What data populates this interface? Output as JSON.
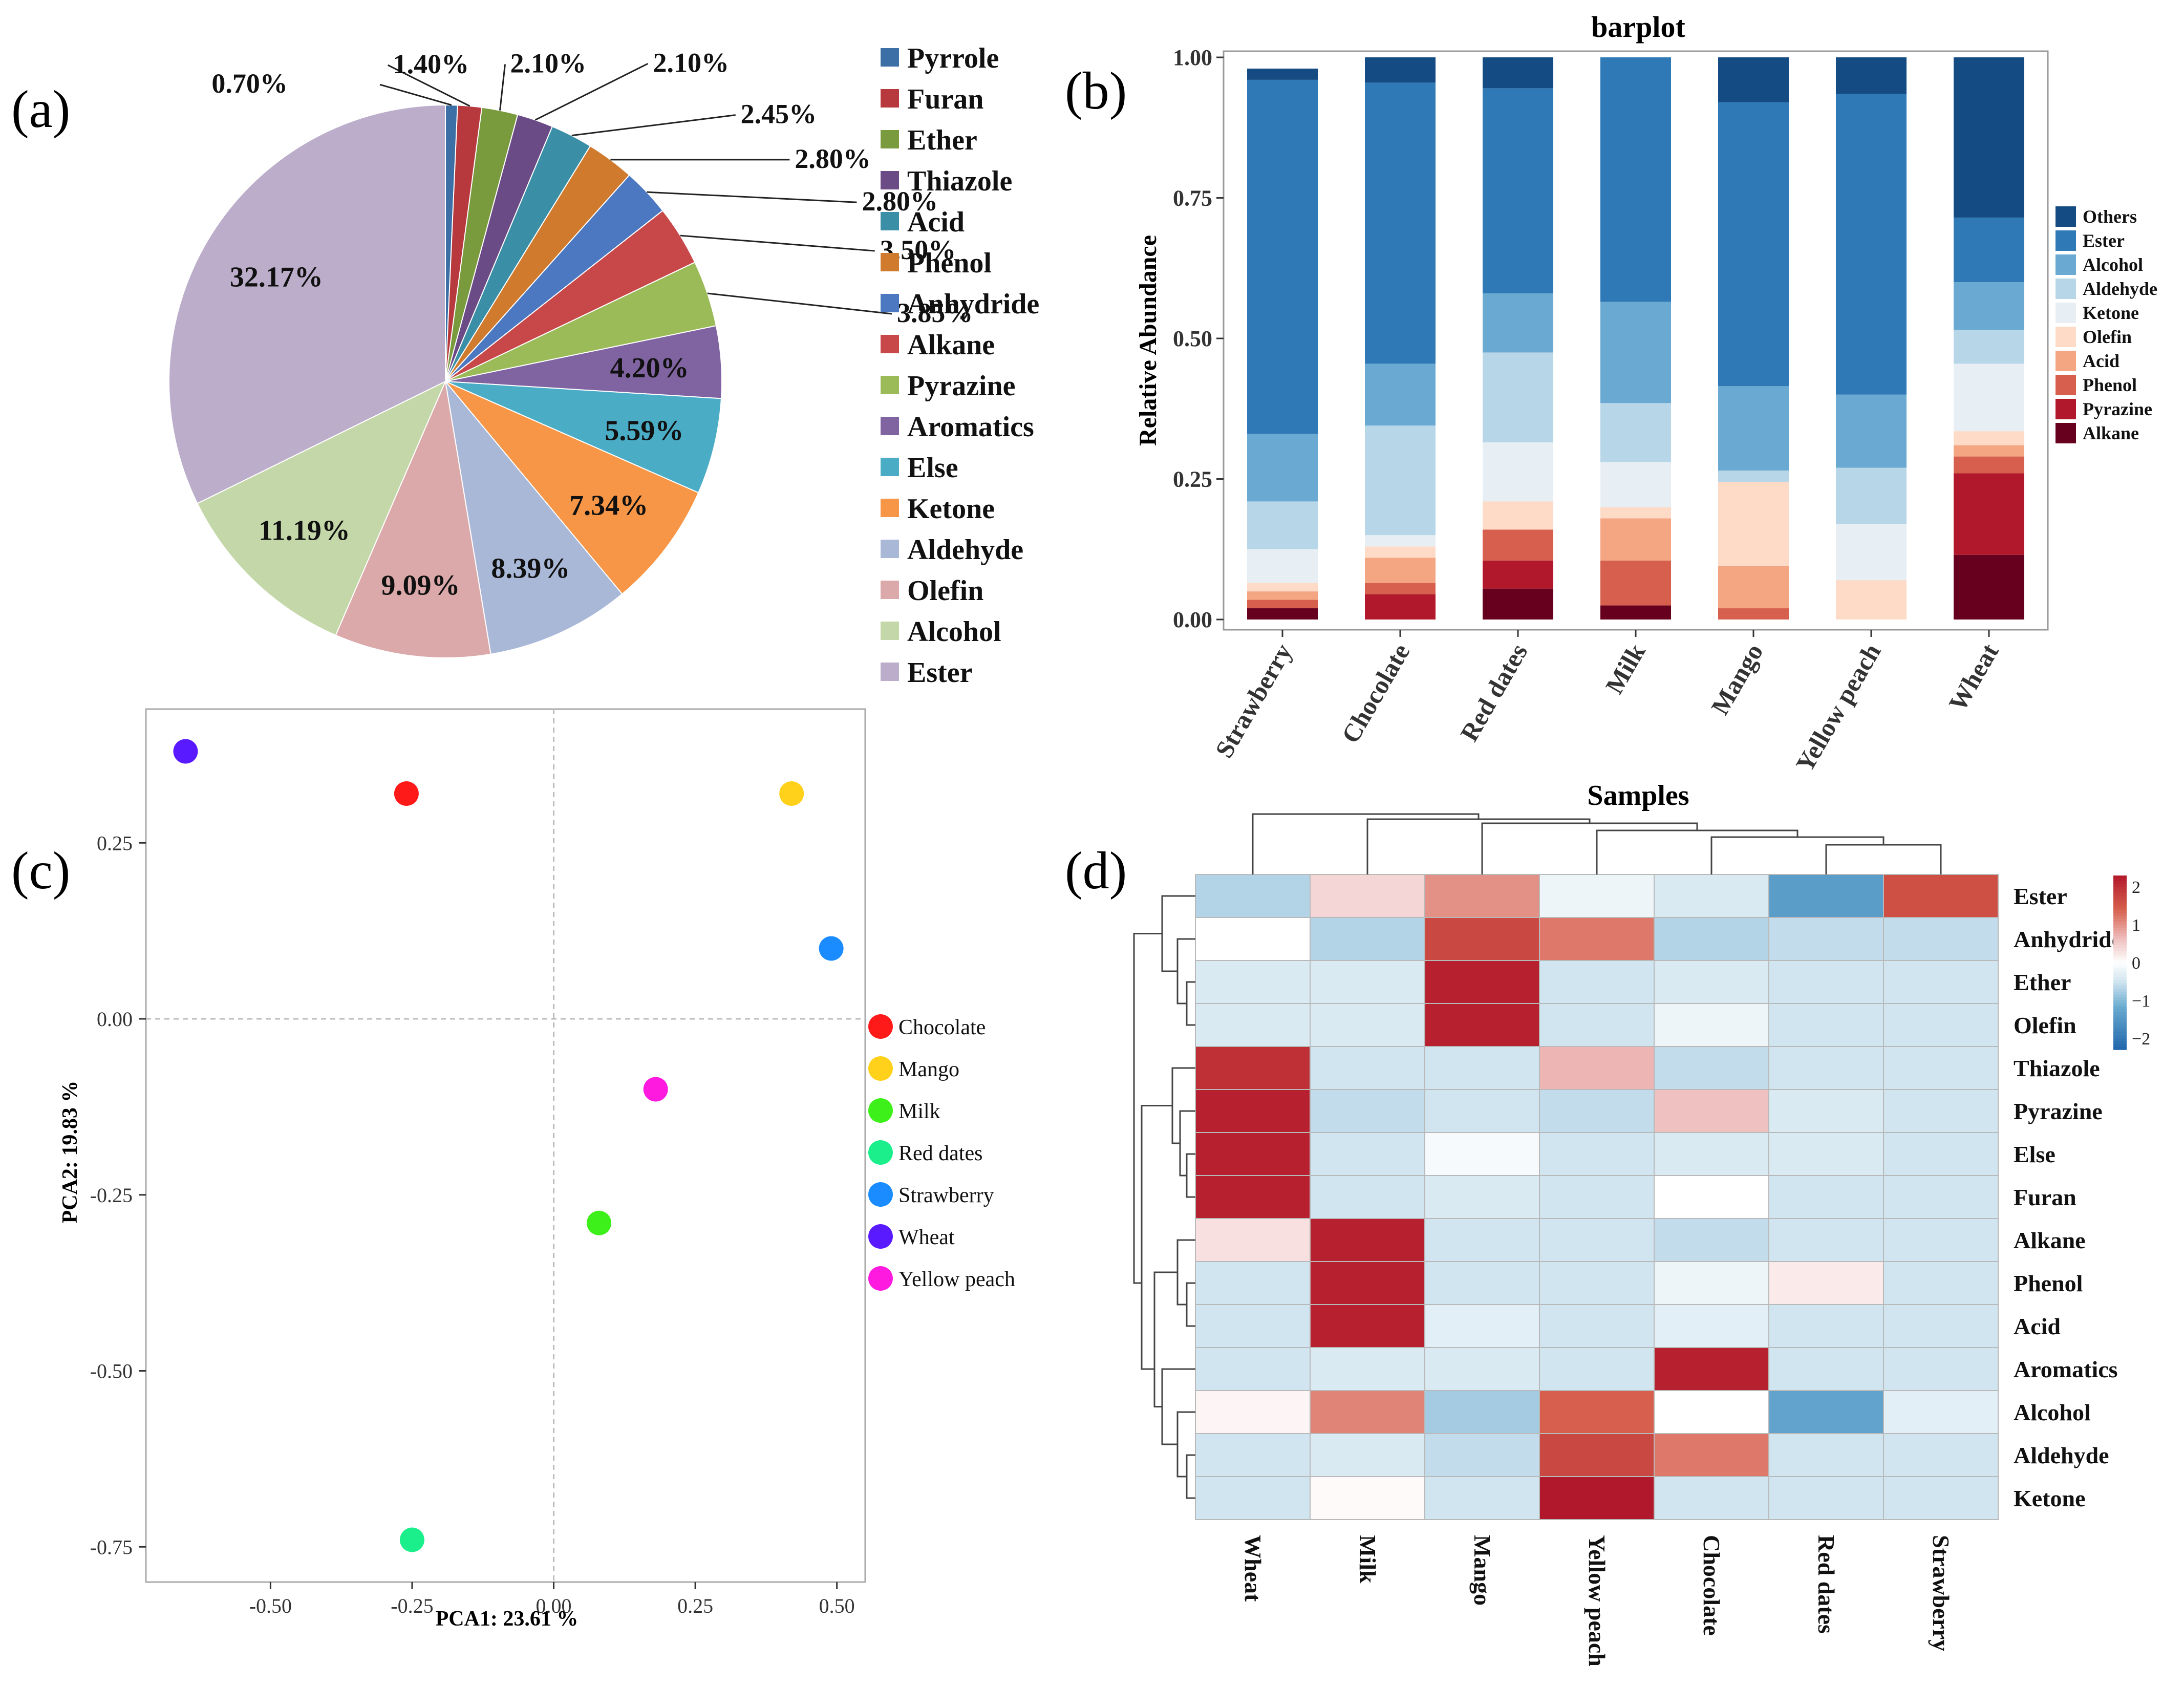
{
  "panel_labels": {
    "a": "(a)",
    "b": "(b)",
    "c": "(c)",
    "d": "(d)"
  },
  "chart_data": [
    {
      "id": "a",
      "type": "pie",
      "title": "",
      "slices": [
        {
          "name": "Pyrrole",
          "value": 0.7,
          "label": "0.70%",
          "color": "#3c6fa6"
        },
        {
          "name": "Furan",
          "value": 1.4,
          "label": "1.40%",
          "color": "#b7393d"
        },
        {
          "name": "Ether",
          "value": 2.1,
          "label": "2.10%",
          "color": "#7a9a3e"
        },
        {
          "name": "Thiazole",
          "value": 2.1,
          "label": "2.10%",
          "color": "#6b4b86"
        },
        {
          "name": "Acid",
          "value": 2.45,
          "label": "2.45%",
          "color": "#3a8ea6"
        },
        {
          "name": "Phenol",
          "value": 2.8,
          "label": "2.80%",
          "color": "#d07a2e"
        },
        {
          "name": "Anhydride",
          "value": 2.8,
          "label": "2.80%",
          "color": "#4b78c0"
        },
        {
          "name": "Alkane",
          "value": 3.5,
          "label": "3.50%",
          "color": "#c8484a"
        },
        {
          "name": "Pyrazine",
          "value": 3.85,
          "label": "3.85%",
          "color": "#9bbb59"
        },
        {
          "name": "Aromatics",
          "value": 4.2,
          "label": "4.20%",
          "color": "#8064a2"
        },
        {
          "name": "Else",
          "value": 5.59,
          "label": "5.59%",
          "color": "#4bacc6"
        },
        {
          "name": "Ketone",
          "value": 7.34,
          "label": "7.34%",
          "color": "#f79646"
        },
        {
          "name": "Aldehyde",
          "value": 8.39,
          "label": "8.39%",
          "color": "#aab8d8"
        },
        {
          "name": "Olefin",
          "value": 9.09,
          "label": "9.09%",
          "color": "#dba9a9"
        },
        {
          "name": "Alcohol",
          "value": 11.19,
          "label": "11.19%",
          "color": "#c4d7a8"
        },
        {
          "name": "Ester",
          "value": 32.17,
          "label": "32.17%",
          "color": "#bcaecb"
        }
      ]
    },
    {
      "id": "b",
      "type": "bar",
      "stacked": true,
      "title": "barplot",
      "xlabel": "",
      "ylabel": "Relative Abundance",
      "ylim": [
        0,
        1
      ],
      "yticks": [
        "0.00",
        "0.25",
        "0.50",
        "0.75",
        "1.00"
      ],
      "categories": [
        "Strawberry",
        "Chocolate",
        "Red dates",
        "Milk",
        "Mango",
        "Yellow peach",
        "Wheat"
      ],
      "series": [
        {
          "name": "Alkane",
          "color": "#67001f",
          "values": [
            0.02,
            0.0,
            0.055,
            0.025,
            0.0,
            0.0,
            0.115
          ]
        },
        {
          "name": "Pyrazine",
          "color": "#b2182b",
          "values": [
            0.0,
            0.045,
            0.05,
            0.0,
            0.0,
            0.0,
            0.145
          ]
        },
        {
          "name": "Phenol",
          "color": "#d6604d",
          "values": [
            0.015,
            0.02,
            0.055,
            0.08,
            0.02,
            0.0,
            0.03
          ]
        },
        {
          "name": "Acid",
          "color": "#f4a582",
          "values": [
            0.015,
            0.045,
            0.0,
            0.075,
            0.075,
            0.0,
            0.02
          ]
        },
        {
          "name": "Olefin",
          "color": "#fddbc7",
          "values": [
            0.015,
            0.02,
            0.05,
            0.02,
            0.15,
            0.07,
            0.025
          ]
        },
        {
          "name": "Ketone",
          "color": "#e8eff4",
          "values": [
            0.06,
            0.02,
            0.105,
            0.08,
            0.0,
            0.1,
            0.12
          ]
        },
        {
          "name": "Aldehyde",
          "color": "#b7d6e8",
          "values": [
            0.085,
            0.195,
            0.16,
            0.105,
            0.02,
            0.1,
            0.06
          ]
        },
        {
          "name": "Alcohol",
          "color": "#6aaad2",
          "values": [
            0.12,
            0.11,
            0.105,
            0.18,
            0.15,
            0.13,
            0.085
          ]
        },
        {
          "name": "Ester",
          "color": "#2f7ab6",
          "values": [
            0.63,
            0.5,
            0.365,
            0.435,
            0.505,
            0.535,
            0.115
          ]
        },
        {
          "name": "Others",
          "color": "#144b82",
          "values": [
            0.02,
            0.045,
            0.055,
            0.0,
            0.08,
            0.065,
            0.285
          ]
        }
      ],
      "legend_order": [
        "Others",
        "Ester",
        "Alcohol",
        "Aldehyde",
        "Ketone",
        "Olefin",
        "Acid",
        "Phenol",
        "Pyrazine",
        "Alkane"
      ]
    },
    {
      "id": "c",
      "type": "scatter",
      "title": "",
      "xlabel": "PCA1: 23.61 %",
      "ylabel": "PCA2: 19.83 %",
      "xlim": [
        -0.72,
        0.55
      ],
      "ylim": [
        -0.8,
        0.44
      ],
      "xticks": [
        "-0.50",
        "-0.25",
        "0.00",
        "0.25",
        "0.50"
      ],
      "xtick_values": [
        -0.5,
        -0.25,
        0,
        0.25,
        0.5
      ],
      "yticks": [
        "0.25",
        "0.00",
        "-0.25",
        "-0.50",
        "-0.75"
      ],
      "ytick_values": [
        0.25,
        0,
        -0.25,
        -0.5,
        -0.75
      ],
      "points": [
        {
          "name": "Chocolate",
          "x": -0.26,
          "y": 0.32,
          "color": "#ff1a1a"
        },
        {
          "name": "Mango",
          "x": 0.42,
          "y": 0.32,
          "color": "#ffd11a"
        },
        {
          "name": "Milk",
          "x": 0.08,
          "y": -0.29,
          "color": "#3ef01a"
        },
        {
          "name": "Red dates",
          "x": -0.25,
          "y": -0.74,
          "color": "#1aef8c"
        },
        {
          "name": "Strawberry",
          "x": 0.49,
          "y": 0.1,
          "color": "#1a8cff"
        },
        {
          "name": "Wheat",
          "x": -0.65,
          "y": 0.38,
          "color": "#5a1aff"
        },
        {
          "name": "Yellow peach",
          "x": 0.18,
          "y": -0.1,
          "color": "#ff1ae0"
        }
      ]
    },
    {
      "id": "d",
      "type": "heatmap",
      "title": "Samples",
      "columns": [
        "Wheat",
        "Milk",
        "Mango",
        "Yellow peach",
        "Chocolate",
        "Red dates",
        "Strawberry"
      ],
      "rows": [
        "Ester",
        "Anhydride",
        "Ether",
        "Olefin",
        "Thiazole",
        "Pyrazine",
        "Else",
        "Furan",
        "Alkane",
        "Phenol",
        "Acid",
        "Aromatics",
        "Alcohol",
        "Aldehyde",
        "Ketone"
      ],
      "values": [
        [
          -0.7,
          0.4,
          1.0,
          -0.2,
          -0.4,
          -1.4,
          1.6
        ],
        [
          0.0,
          -0.7,
          1.7,
          1.2,
          -0.7,
          -0.6,
          -0.6
        ],
        [
          -0.4,
          -0.4,
          2.2,
          -0.5,
          -0.4,
          -0.5,
          -0.5
        ],
        [
          -0.4,
          -0.4,
          2.2,
          -0.5,
          -0.2,
          -0.5,
          -0.5
        ],
        [
          2.0,
          -0.5,
          -0.5,
          0.7,
          -0.6,
          -0.5,
          -0.5
        ],
        [
          2.2,
          -0.6,
          -0.5,
          -0.6,
          0.6,
          -0.4,
          -0.5
        ],
        [
          2.2,
          -0.5,
          -0.1,
          -0.5,
          -0.4,
          -0.4,
          -0.5
        ],
        [
          2.2,
          -0.5,
          -0.4,
          -0.5,
          0.0,
          -0.5,
          -0.5
        ],
        [
          0.3,
          2.2,
          -0.5,
          -0.5,
          -0.6,
          -0.5,
          -0.5
        ],
        [
          -0.5,
          2.2,
          -0.5,
          -0.5,
          -0.2,
          0.2,
          -0.5
        ],
        [
          -0.5,
          2.2,
          -0.3,
          -0.5,
          -0.3,
          -0.5,
          -0.5
        ],
        [
          -0.5,
          -0.4,
          -0.4,
          -0.5,
          2.2,
          -0.5,
          -0.5
        ],
        [
          0.1,
          1.1,
          -0.8,
          1.4,
          0.0,
          -1.3,
          -0.3
        ],
        [
          -0.5,
          -0.4,
          -0.6,
          1.7,
          1.2,
          -0.5,
          -0.5
        ],
        [
          -0.5,
          0.05,
          -0.5,
          2.3,
          -0.5,
          -0.5,
          -0.5
        ]
      ],
      "colorbar_ticks": [
        "2",
        "1",
        "0",
        "−1",
        "−2"
      ],
      "colorbar_values": [
        2,
        1,
        0,
        -1,
        -2
      ],
      "vmin": -2.3,
      "vmax": 2.3
    }
  ]
}
